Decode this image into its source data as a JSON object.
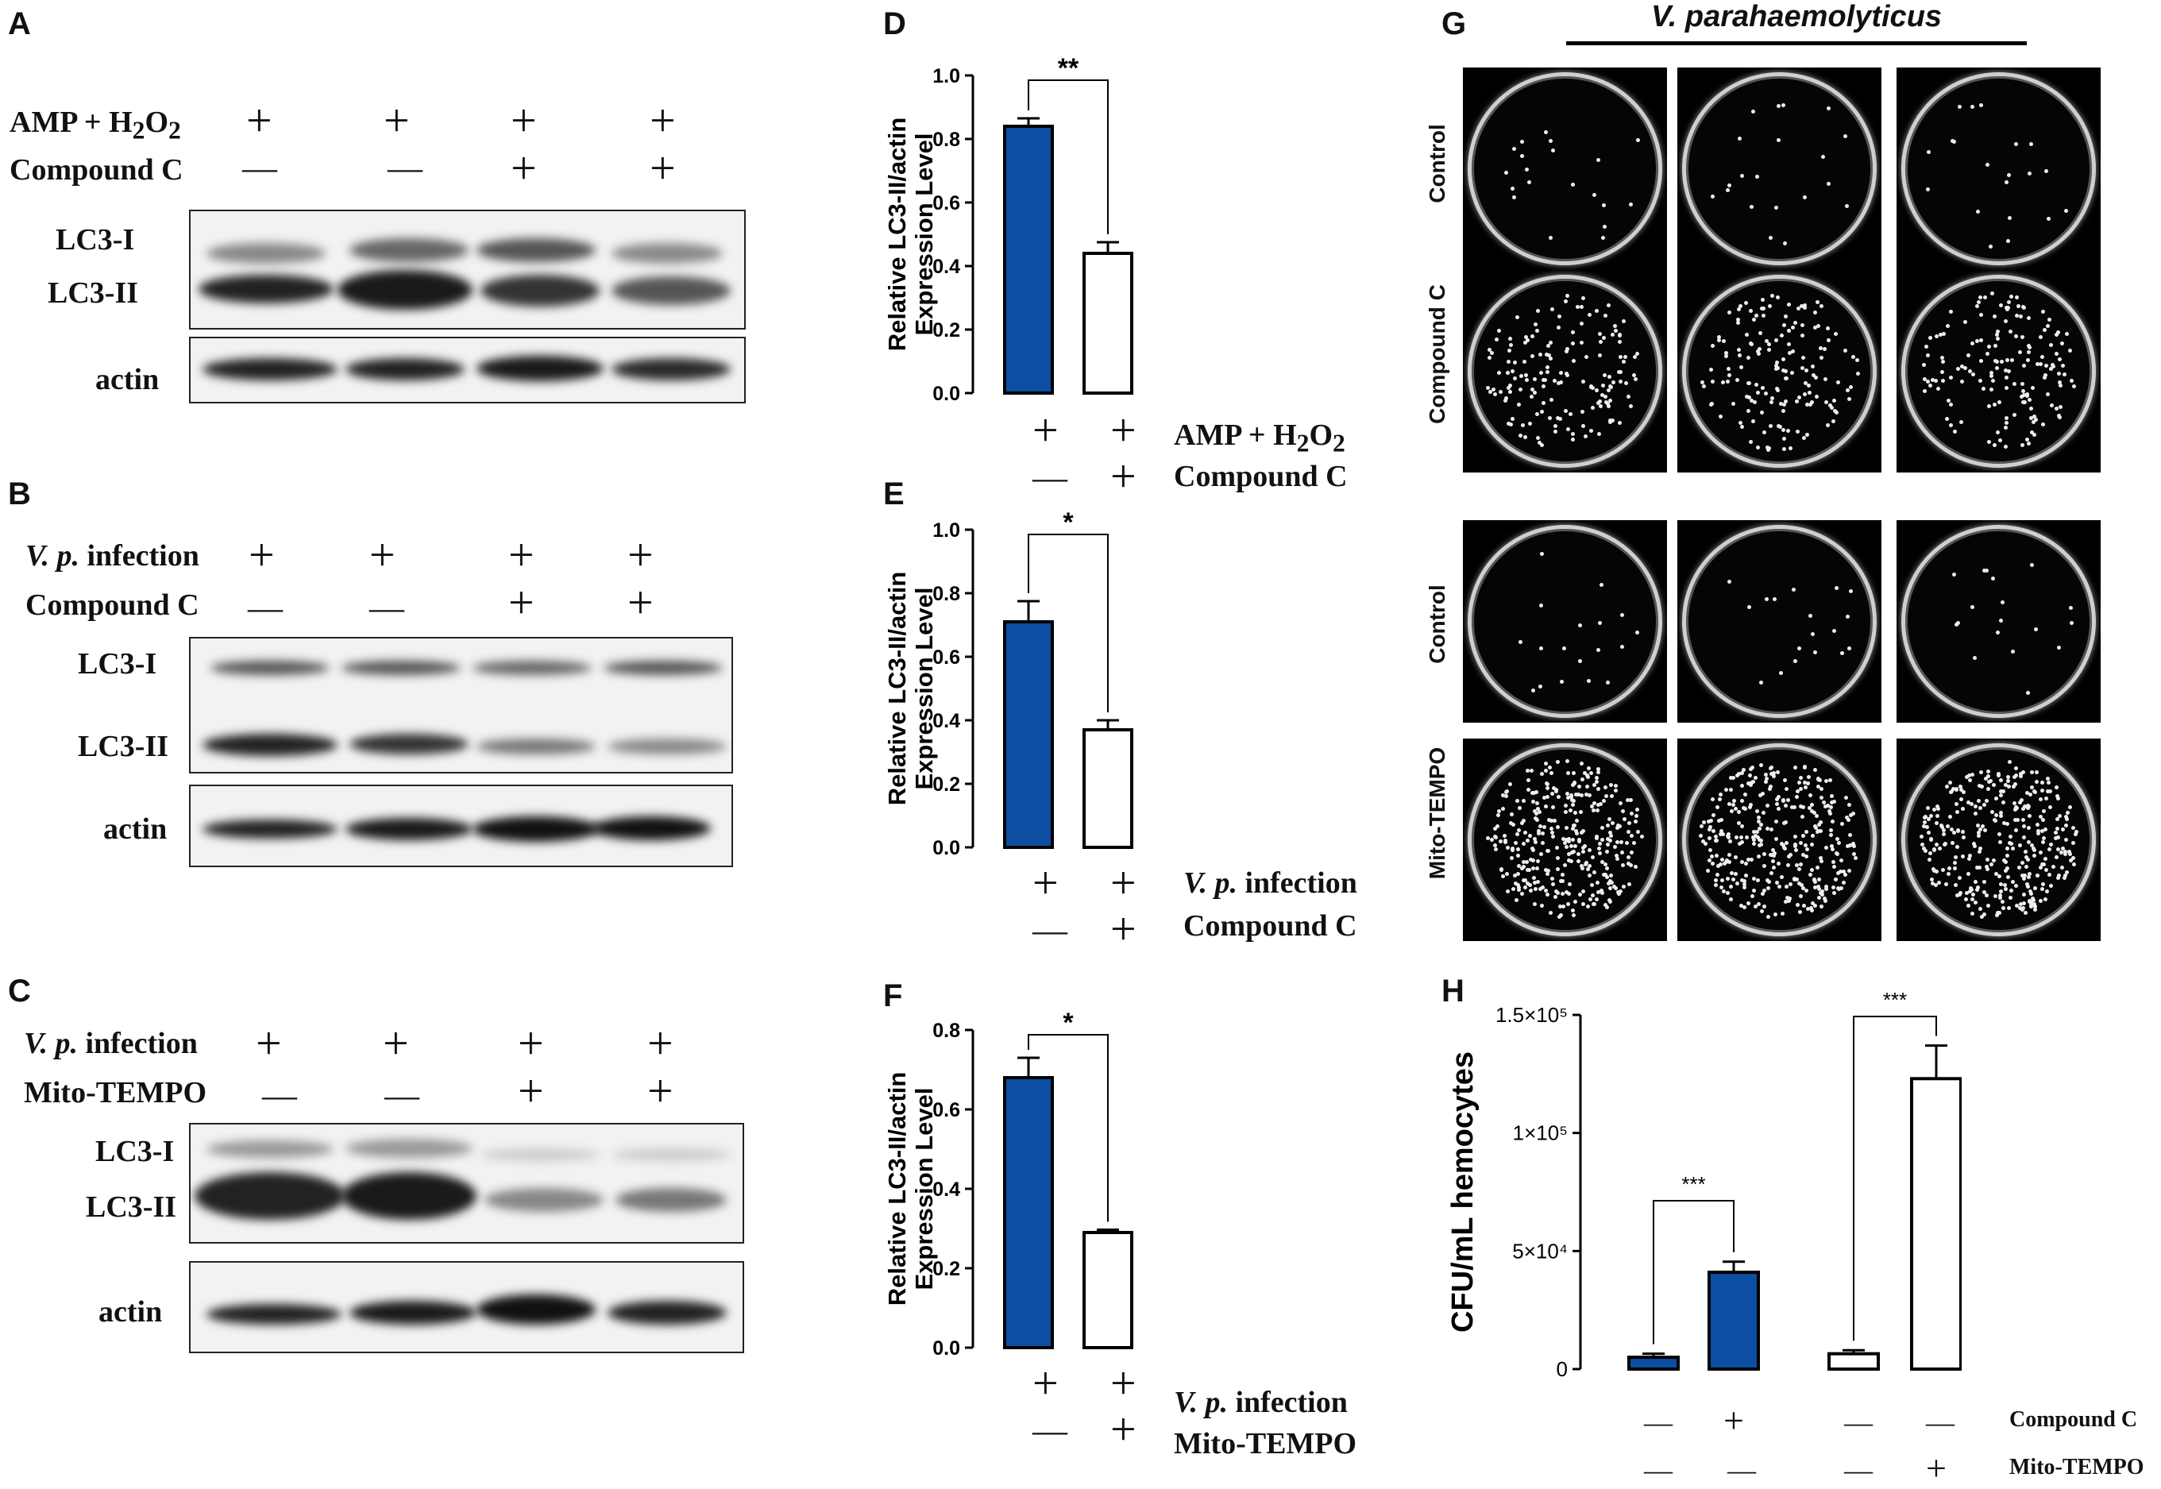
{
  "panels": {
    "A": {
      "letter": "A",
      "rows": [
        {
          "label_main": "AMP + H",
          "label_sub": "2",
          "label_main2": "O",
          "label_sub2": "2",
          "signs": [
            "+",
            "+",
            "+",
            "+"
          ]
        },
        {
          "label": "Compound C",
          "signs": [
            "—",
            "—",
            "+",
            "+"
          ]
        }
      ],
      "bands": [
        "LC3-I",
        "LC3-II",
        "actin"
      ]
    },
    "B": {
      "letter": "B",
      "rows": [
        {
          "label_italic": "V. p.",
          "label_rest": " infection",
          "signs": [
            "+",
            "+",
            "+",
            "+"
          ]
        },
        {
          "label": "Compound C",
          "signs": [
            "—",
            "—",
            "+",
            "+"
          ]
        }
      ],
      "bands": [
        "LC3-I",
        "LC3-II",
        "actin"
      ]
    },
    "C": {
      "letter": "C",
      "rows": [
        {
          "label_italic": "V. p.",
          "label_rest": " infection",
          "signs": [
            "+",
            "+",
            "+",
            "+"
          ]
        },
        {
          "label": "Mito-TEMPO",
          "signs": [
            "—",
            "—",
            "+",
            "+"
          ]
        }
      ],
      "bands": [
        "LC3-I",
        "LC3-II",
        "actin"
      ]
    },
    "D": {
      "letter": "D",
      "rows": [
        {
          "label_main": "AMP + H",
          "label_sub": "2",
          "label_main2": "O",
          "label_sub2": "2",
          "signs": [
            "+",
            "+"
          ]
        },
        {
          "label": "Compound C",
          "signs": [
            "—",
            "+"
          ]
        }
      ]
    },
    "E": {
      "letter": "E",
      "rows": [
        {
          "label_italic": "V. p.",
          "label_rest": " infection",
          "signs": [
            "+",
            "+"
          ]
        },
        {
          "label": "Compound C",
          "signs": [
            "—",
            "+"
          ]
        }
      ]
    },
    "F": {
      "letter": "F",
      "rows": [
        {
          "label_italic": "V. p.",
          "label_rest": " infection",
          "signs": [
            "+",
            "+"
          ]
        },
        {
          "label": "Mito-TEMPO",
          "signs": [
            "—",
            "+"
          ]
        }
      ]
    },
    "G": {
      "letter": "G",
      "title": "V. parahaemolyticus",
      "row_labels": [
        "Control",
        "Compound C",
        "Control",
        "Mito-TEMPO"
      ]
    },
    "H": {
      "letter": "H",
      "rows": [
        {
          "label": "Compound C",
          "signs": [
            "—",
            "+",
            "—",
            "—"
          ]
        },
        {
          "label": "Mito-TEMPO",
          "signs": [
            "—",
            "—",
            "—",
            "+"
          ]
        }
      ]
    }
  },
  "colors": {
    "blue": "#0b4ea2",
    "white": "#ffffff",
    "black": "#000000"
  },
  "chart_data": [
    {
      "panel": "D",
      "type": "bar",
      "ylabel": "Relative LC3-II/actin Expression Level",
      "ylim": [
        0,
        1.0
      ],
      "yticks": [
        "0.0",
        "0.2",
        "0.4",
        "0.6",
        "0.8",
        "1.0"
      ],
      "values": [
        0.84,
        0.44
      ],
      "errors": [
        0.025,
        0.035
      ],
      "fills": [
        "#0b4ea2",
        "#ffffff"
      ],
      "significance": "**"
    },
    {
      "panel": "E",
      "type": "bar",
      "ylabel": "Relative LC3-II/actin Expression Level",
      "ylim": [
        0,
        1.0
      ],
      "yticks": [
        "0.0",
        "0.2",
        "0.4",
        "0.6",
        "0.8",
        "1.0"
      ],
      "values": [
        0.71,
        0.37
      ],
      "errors": [
        0.065,
        0.03
      ],
      "fills": [
        "#0b4ea2",
        "#ffffff"
      ],
      "significance": "*"
    },
    {
      "panel": "F",
      "type": "bar",
      "ylabel": "Relative LC3-II/actin Expression Level",
      "ylim": [
        0,
        0.8
      ],
      "yticks": [
        "0.0",
        "0.2",
        "0.4",
        "0.6",
        "0.8"
      ],
      "values": [
        0.68,
        0.29
      ],
      "errors": [
        0.05,
        0.007
      ],
      "fills": [
        "#0b4ea2",
        "#ffffff"
      ],
      "significance": "*"
    },
    {
      "panel": "H",
      "type": "bar",
      "ylabel": "CFU/mL hemocytes",
      "ylim": [
        0,
        150000
      ],
      "yticks": [
        "0",
        "5×10⁴",
        "1×10⁵",
        "1.5×10⁵"
      ],
      "values": [
        5000,
        41000,
        6500,
        123000
      ],
      "errors": [
        1500,
        4500,
        1500,
        14000
      ],
      "fills": [
        "#0b4ea2",
        "#0b4ea2",
        "#ffffff",
        "#ffffff"
      ],
      "significance": [
        "***",
        "***"
      ]
    }
  ]
}
